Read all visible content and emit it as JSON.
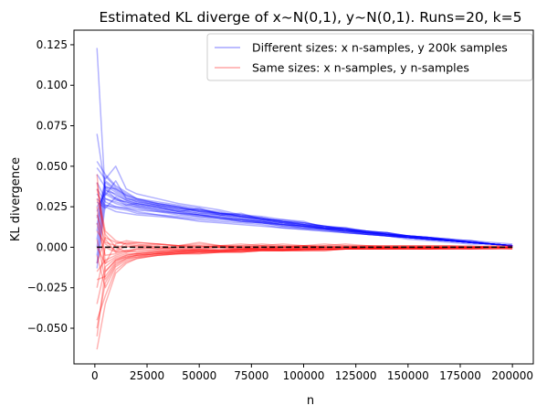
{
  "chart_data": {
    "type": "line",
    "title": "Estimated KL diverge of x~N(0,1), y~N(0,1). Runs=20, k=5",
    "xlabel": "n",
    "ylabel": "KL divergence",
    "xlim": [
      -10000,
      210000
    ],
    "ylim": [
      -0.072,
      0.134
    ],
    "x_ticks": [
      0,
      25000,
      50000,
      75000,
      100000,
      125000,
      150000,
      175000,
      200000
    ],
    "y_ticks": [
      -0.05,
      -0.025,
      0.0,
      0.025,
      0.05,
      0.075,
      0.1,
      0.125
    ],
    "x_tick_labels": [
      "0",
      "25000",
      "50000",
      "75000",
      "100000",
      "125000",
      "150000",
      "175000",
      "200000"
    ],
    "y_tick_labels": [
      "−0.050",
      "−0.025",
      "0.000",
      "0.025",
      "0.050",
      "0.075",
      "0.100",
      "0.125"
    ],
    "legend_position": "top-right",
    "grid": false,
    "x": [
      1000,
      5000,
      10000,
      15000,
      20000,
      30000,
      40000,
      50000,
      60000,
      70000,
      80000,
      90000,
      100000,
      110000,
      120000,
      130000,
      140000,
      150000,
      160000,
      170000,
      180000,
      190000,
      200000
    ],
    "series": [
      {
        "name": "Different sizes: x n-samples, y 200k samples",
        "color": "#0000ff",
        "runs": [
          [
            0.123,
            0.032,
            0.041,
            0.03,
            0.028,
            0.026,
            0.024,
            0.022,
            0.021,
            0.02,
            0.018,
            0.016,
            0.015,
            0.013,
            0.011,
            0.01,
            0.008,
            0.007,
            0.006,
            0.005,
            0.003,
            0.002,
            0.001
          ],
          [
            0.07,
            0.036,
            0.03,
            0.026,
            0.027,
            0.025,
            0.022,
            0.024,
            0.02,
            0.021,
            0.017,
            0.017,
            0.016,
            0.012,
            0.012,
            0.009,
            0.009,
            0.006,
            0.006,
            0.004,
            0.004,
            0.002,
            0.001
          ],
          [
            0.053,
            0.045,
            0.038,
            0.034,
            0.03,
            0.028,
            0.026,
            0.024,
            0.021,
            0.019,
            0.017,
            0.015,
            0.013,
            0.012,
            0.011,
            0.009,
            0.008,
            0.006,
            0.005,
            0.004,
            0.003,
            0.002,
            0.001
          ],
          [
            0.049,
            0.042,
            0.05,
            0.036,
            0.033,
            0.03,
            0.027,
            0.025,
            0.023,
            0.02,
            0.019,
            0.017,
            0.015,
            0.013,
            0.012,
            0.01,
            0.009,
            0.007,
            0.006,
            0.005,
            0.004,
            0.003,
            0.002
          ],
          [
            0.045,
            0.037,
            0.036,
            0.032,
            0.03,
            0.027,
            0.025,
            0.023,
            0.022,
            0.019,
            0.018,
            0.016,
            0.014,
            0.012,
            0.011,
            0.009,
            0.008,
            0.007,
            0.006,
            0.004,
            0.003,
            0.002,
            0.001
          ],
          [
            0.04,
            0.03,
            0.027,
            0.025,
            0.024,
            0.022,
            0.021,
            0.02,
            0.018,
            0.017,
            0.016,
            0.014,
            0.013,
            0.012,
            0.01,
            0.009,
            0.008,
            0.006,
            0.005,
            0.004,
            0.003,
            0.002,
            0.001
          ],
          [
            0.036,
            0.028,
            0.025,
            0.024,
            0.022,
            0.02,
            0.019,
            0.018,
            0.017,
            0.016,
            0.015,
            0.013,
            0.012,
            0.011,
            0.009,
            0.008,
            0.007,
            0.006,
            0.005,
            0.004,
            0.003,
            0.002,
            0.001
          ],
          [
            0.033,
            0.026,
            0.024,
            0.023,
            0.021,
            0.02,
            0.018,
            0.017,
            0.016,
            0.015,
            0.014,
            0.012,
            0.011,
            0.01,
            0.009,
            0.008,
            0.007,
            0.006,
            0.005,
            0.004,
            0.003,
            0.002,
            0.001
          ],
          [
            0.03,
            0.025,
            0.022,
            0.021,
            0.02,
            0.019,
            0.018,
            0.016,
            0.015,
            0.014,
            0.013,
            0.012,
            0.011,
            0.01,
            0.009,
            0.008,
            0.007,
            0.005,
            0.004,
            0.003,
            0.002,
            0.002,
            0.001
          ],
          [
            0.028,
            0.024,
            0.031,
            0.027,
            0.025,
            0.023,
            0.021,
            0.019,
            0.018,
            0.016,
            0.015,
            0.014,
            0.012,
            0.011,
            0.01,
            0.009,
            0.007,
            0.006,
            0.005,
            0.004,
            0.003,
            0.002,
            0.001
          ],
          [
            0.025,
            0.033,
            0.029,
            0.028,
            0.026,
            0.024,
            0.022,
            0.02,
            0.019,
            0.017,
            0.016,
            0.014,
            0.013,
            0.012,
            0.01,
            0.009,
            0.008,
            0.006,
            0.005,
            0.004,
            0.003,
            0.002,
            0.001
          ],
          [
            0.022,
            0.035,
            0.033,
            0.029,
            0.027,
            0.025,
            0.023,
            0.021,
            0.02,
            0.018,
            0.016,
            0.015,
            0.013,
            0.012,
            0.011,
            0.009,
            0.008,
            0.007,
            0.005,
            0.004,
            0.003,
            0.002,
            0.001
          ],
          [
            0.018,
            0.04,
            0.035,
            0.031,
            0.028,
            0.026,
            0.024,
            0.022,
            0.02,
            0.019,
            0.017,
            0.015,
            0.014,
            0.012,
            0.011,
            0.01,
            0.008,
            0.007,
            0.006,
            0.004,
            0.003,
            0.002,
            0.001
          ],
          [
            0.014,
            0.038,
            0.034,
            0.03,
            0.029,
            0.026,
            0.024,
            0.023,
            0.021,
            0.019,
            0.018,
            0.016,
            0.014,
            0.013,
            0.011,
            0.01,
            0.009,
            0.007,
            0.006,
            0.005,
            0.003,
            0.002,
            0.001
          ],
          [
            0.01,
            0.044,
            0.037,
            0.033,
            0.03,
            0.027,
            0.025,
            0.023,
            0.021,
            0.02,
            0.018,
            0.016,
            0.015,
            0.013,
            0.012,
            0.01,
            0.009,
            0.007,
            0.006,
            0.005,
            0.004,
            0.002,
            0.001
          ],
          [
            0.005,
            0.041,
            0.036,
            0.032,
            0.029,
            0.027,
            0.025,
            0.022,
            0.021,
            0.019,
            0.017,
            0.016,
            0.014,
            0.013,
            0.011,
            0.01,
            0.008,
            0.007,
            0.006,
            0.004,
            0.003,
            0.002,
            0.001
          ],
          [
            0.0,
            0.037,
            0.032,
            0.029,
            0.027,
            0.025,
            0.023,
            0.021,
            0.02,
            0.018,
            0.017,
            0.015,
            0.014,
            0.012,
            0.011,
            0.009,
            0.008,
            0.006,
            0.005,
            0.004,
            0.003,
            0.002,
            0.001
          ],
          [
            -0.005,
            0.034,
            0.03,
            0.028,
            0.026,
            0.024,
            0.022,
            0.02,
            0.019,
            0.017,
            0.016,
            0.014,
            0.013,
            0.011,
            0.01,
            0.009,
            0.007,
            0.006,
            0.005,
            0.004,
            0.003,
            0.002,
            0.001
          ],
          [
            -0.01,
            0.03,
            0.028,
            0.026,
            0.025,
            0.023,
            0.021,
            0.02,
            0.018,
            0.017,
            0.015,
            0.014,
            0.013,
            0.011,
            0.01,
            0.008,
            0.007,
            0.006,
            0.005,
            0.004,
            0.003,
            0.002,
            0.001
          ],
          [
            -0.013,
            0.026,
            0.025,
            0.024,
            0.023,
            0.022,
            0.02,
            0.019,
            0.018,
            0.016,
            0.015,
            0.013,
            0.012,
            0.011,
            0.01,
            0.008,
            0.007,
            0.006,
            0.005,
            0.004,
            0.003,
            0.002,
            0.001
          ]
        ]
      },
      {
        "name": "Same sizes: x n-samples, y n-samples",
        "color": "#ff0000",
        "runs": [
          [
            0.045,
            -0.01,
            0.002,
            0.004,
            0.003,
            0.002,
            0.001,
            0.002,
            0.001,
            0.001,
            0.002,
            0.001,
            0.001,
            0.001,
            0.002,
            0.001,
            0.001,
            0.001,
            0.001,
            0.001,
            0.0,
            0.001,
            0.001
          ],
          [
            0.04,
            0.005,
            -0.003,
            0.001,
            0.0,
            0.001,
            -0.001,
            0.0,
            0.001,
            0.0,
            0.001,
            0.0,
            0.001,
            0.0,
            0.0,
            0.001,
            0.0,
            0.0,
            0.0,
            0.0,
            0.0,
            0.0,
            0.0
          ],
          [
            0.036,
            0.01,
            0.004,
            0.002,
            0.003,
            0.002,
            0.001,
            0.003,
            0.001,
            0.002,
            0.001,
            0.002,
            0.001,
            0.002,
            0.001,
            0.001,
            0.001,
            0.001,
            0.001,
            0.001,
            0.001,
            0.0,
            0.0
          ],
          [
            0.03,
            0.008,
            0.0,
            -0.003,
            -0.001,
            0.0,
            -0.002,
            -0.001,
            0.0,
            -0.001,
            0.0,
            -0.001,
            0.0,
            -0.001,
            0.0,
            -0.001,
            0.0,
            0.0,
            -0.001,
            0.0,
            0.0,
            0.0,
            -0.001
          ],
          [
            0.025,
            -0.015,
            -0.008,
            -0.005,
            -0.004,
            -0.003,
            -0.003,
            -0.002,
            -0.002,
            -0.002,
            -0.001,
            -0.002,
            -0.001,
            -0.001,
            -0.001,
            -0.001,
            -0.001,
            -0.001,
            -0.001,
            0.0,
            -0.001,
            0.0,
            0.0
          ],
          [
            0.02,
            0.003,
            0.001,
            0.0,
            0.001,
            -0.001,
            0.0,
            0.001,
            0.0,
            -0.001,
            0.0,
            0.0,
            0.001,
            0.0,
            0.0,
            0.0,
            0.0,
            0.0,
            0.0,
            0.0,
            0.0,
            0.0,
            0.0
          ],
          [
            0.015,
            -0.005,
            -0.004,
            -0.002,
            -0.003,
            -0.002,
            -0.002,
            -0.001,
            -0.002,
            -0.001,
            -0.001,
            -0.001,
            -0.001,
            -0.001,
            -0.001,
            0.0,
            -0.001,
            0.0,
            -0.001,
            0.0,
            0.0,
            0.0,
            0.0
          ],
          [
            0.01,
            0.002,
            -0.002,
            0.003,
            0.002,
            0.0,
            0.001,
            0.0,
            0.001,
            0.0,
            0.001,
            0.0,
            0.0,
            0.001,
            0.0,
            0.0,
            0.0,
            0.0,
            0.0,
            0.0,
            0.0,
            0.0,
            0.0
          ],
          [
            0.005,
            -0.02,
            -0.01,
            -0.007,
            -0.005,
            -0.004,
            -0.004,
            -0.003,
            -0.003,
            -0.002,
            -0.002,
            -0.002,
            -0.002,
            -0.001,
            -0.001,
            -0.001,
            -0.001,
            -0.001,
            -0.001,
            -0.001,
            -0.001,
            -0.001,
            -0.001
          ],
          [
            0.0,
            -0.01,
            -0.006,
            -0.004,
            -0.004,
            -0.003,
            -0.002,
            -0.002,
            -0.002,
            -0.001,
            -0.001,
            -0.001,
            -0.001,
            -0.001,
            -0.001,
            -0.001,
            0.0,
            0.0,
            0.0,
            0.0,
            0.0,
            0.0,
            0.0
          ],
          [
            -0.005,
            -0.025,
            -0.012,
            -0.008,
            -0.006,
            -0.005,
            -0.004,
            -0.003,
            -0.003,
            -0.003,
            -0.002,
            -0.002,
            -0.002,
            -0.002,
            -0.001,
            -0.001,
            -0.001,
            -0.001,
            -0.001,
            -0.001,
            -0.001,
            0.0,
            0.0
          ],
          [
            -0.01,
            0.006,
            0.003,
            0.002,
            0.001,
            0.002,
            0.001,
            0.001,
            0.0,
            0.001,
            0.0,
            0.001,
            0.0,
            0.0,
            0.001,
            0.0,
            0.0,
            0.0,
            0.0,
            0.0,
            0.0,
            0.0,
            0.0
          ],
          [
            -0.015,
            -0.008,
            -0.005,
            -0.003,
            -0.002,
            -0.002,
            -0.001,
            -0.002,
            -0.001,
            -0.001,
            -0.001,
            0.0,
            -0.001,
            0.0,
            0.0,
            0.0,
            0.0,
            0.0,
            0.0,
            0.0,
            0.0,
            0.0,
            0.0
          ],
          [
            -0.02,
            -0.018,
            -0.009,
            -0.006,
            -0.005,
            -0.004,
            -0.003,
            -0.003,
            -0.002,
            -0.002,
            -0.002,
            -0.002,
            -0.001,
            -0.001,
            -0.001,
            -0.001,
            -0.001,
            -0.001,
            -0.001,
            0.0,
            0.0,
            0.0,
            0.0
          ],
          [
            -0.025,
            0.0,
            -0.003,
            -0.002,
            -0.001,
            -0.001,
            0.0,
            -0.001,
            0.0,
            0.0,
            -0.001,
            0.0,
            0.0,
            0.0,
            0.0,
            0.0,
            0.0,
            0.0,
            0.0,
            0.0,
            0.0,
            0.0,
            0.0
          ],
          [
            -0.035,
            -0.012,
            -0.007,
            -0.005,
            -0.004,
            -0.003,
            -0.002,
            -0.002,
            -0.002,
            -0.001,
            -0.001,
            -0.001,
            -0.001,
            -0.001,
            -0.001,
            0.0,
            0.0,
            0.0,
            0.0,
            0.0,
            0.0,
            0.0,
            0.0
          ],
          [
            -0.045,
            -0.03,
            -0.014,
            -0.009,
            -0.007,
            -0.005,
            -0.004,
            -0.004,
            -0.003,
            -0.003,
            -0.002,
            -0.002,
            -0.002,
            -0.002,
            -0.001,
            -0.001,
            -0.001,
            -0.001,
            -0.001,
            -0.001,
            -0.001,
            -0.001,
            0.0
          ],
          [
            -0.05,
            -0.022,
            -0.011,
            -0.007,
            -0.006,
            -0.004,
            -0.003,
            -0.003,
            -0.003,
            -0.002,
            -0.002,
            -0.002,
            -0.001,
            -0.001,
            -0.001,
            -0.001,
            -0.001,
            -0.001,
            -0.001,
            -0.001,
            0.0,
            0.0,
            0.0
          ],
          [
            -0.055,
            -0.015,
            -0.008,
            -0.006,
            -0.005,
            -0.004,
            -0.003,
            -0.002,
            -0.002,
            -0.002,
            -0.001,
            -0.001,
            -0.001,
            -0.001,
            -0.001,
            -0.001,
            -0.001,
            0.0,
            0.0,
            0.0,
            0.0,
            0.0,
            0.0
          ],
          [
            -0.063,
            -0.035,
            -0.016,
            -0.01,
            -0.007,
            -0.005,
            -0.004,
            -0.004,
            -0.003,
            -0.003,
            -0.002,
            -0.002,
            -0.002,
            -0.002,
            -0.001,
            -0.001,
            -0.001,
            -0.001,
            -0.001,
            -0.001,
            -0.001,
            -0.001,
            -0.001
          ]
        ]
      }
    ],
    "reference_line": {
      "y": 0.0,
      "style": "dashed",
      "color": "#000000"
    }
  }
}
